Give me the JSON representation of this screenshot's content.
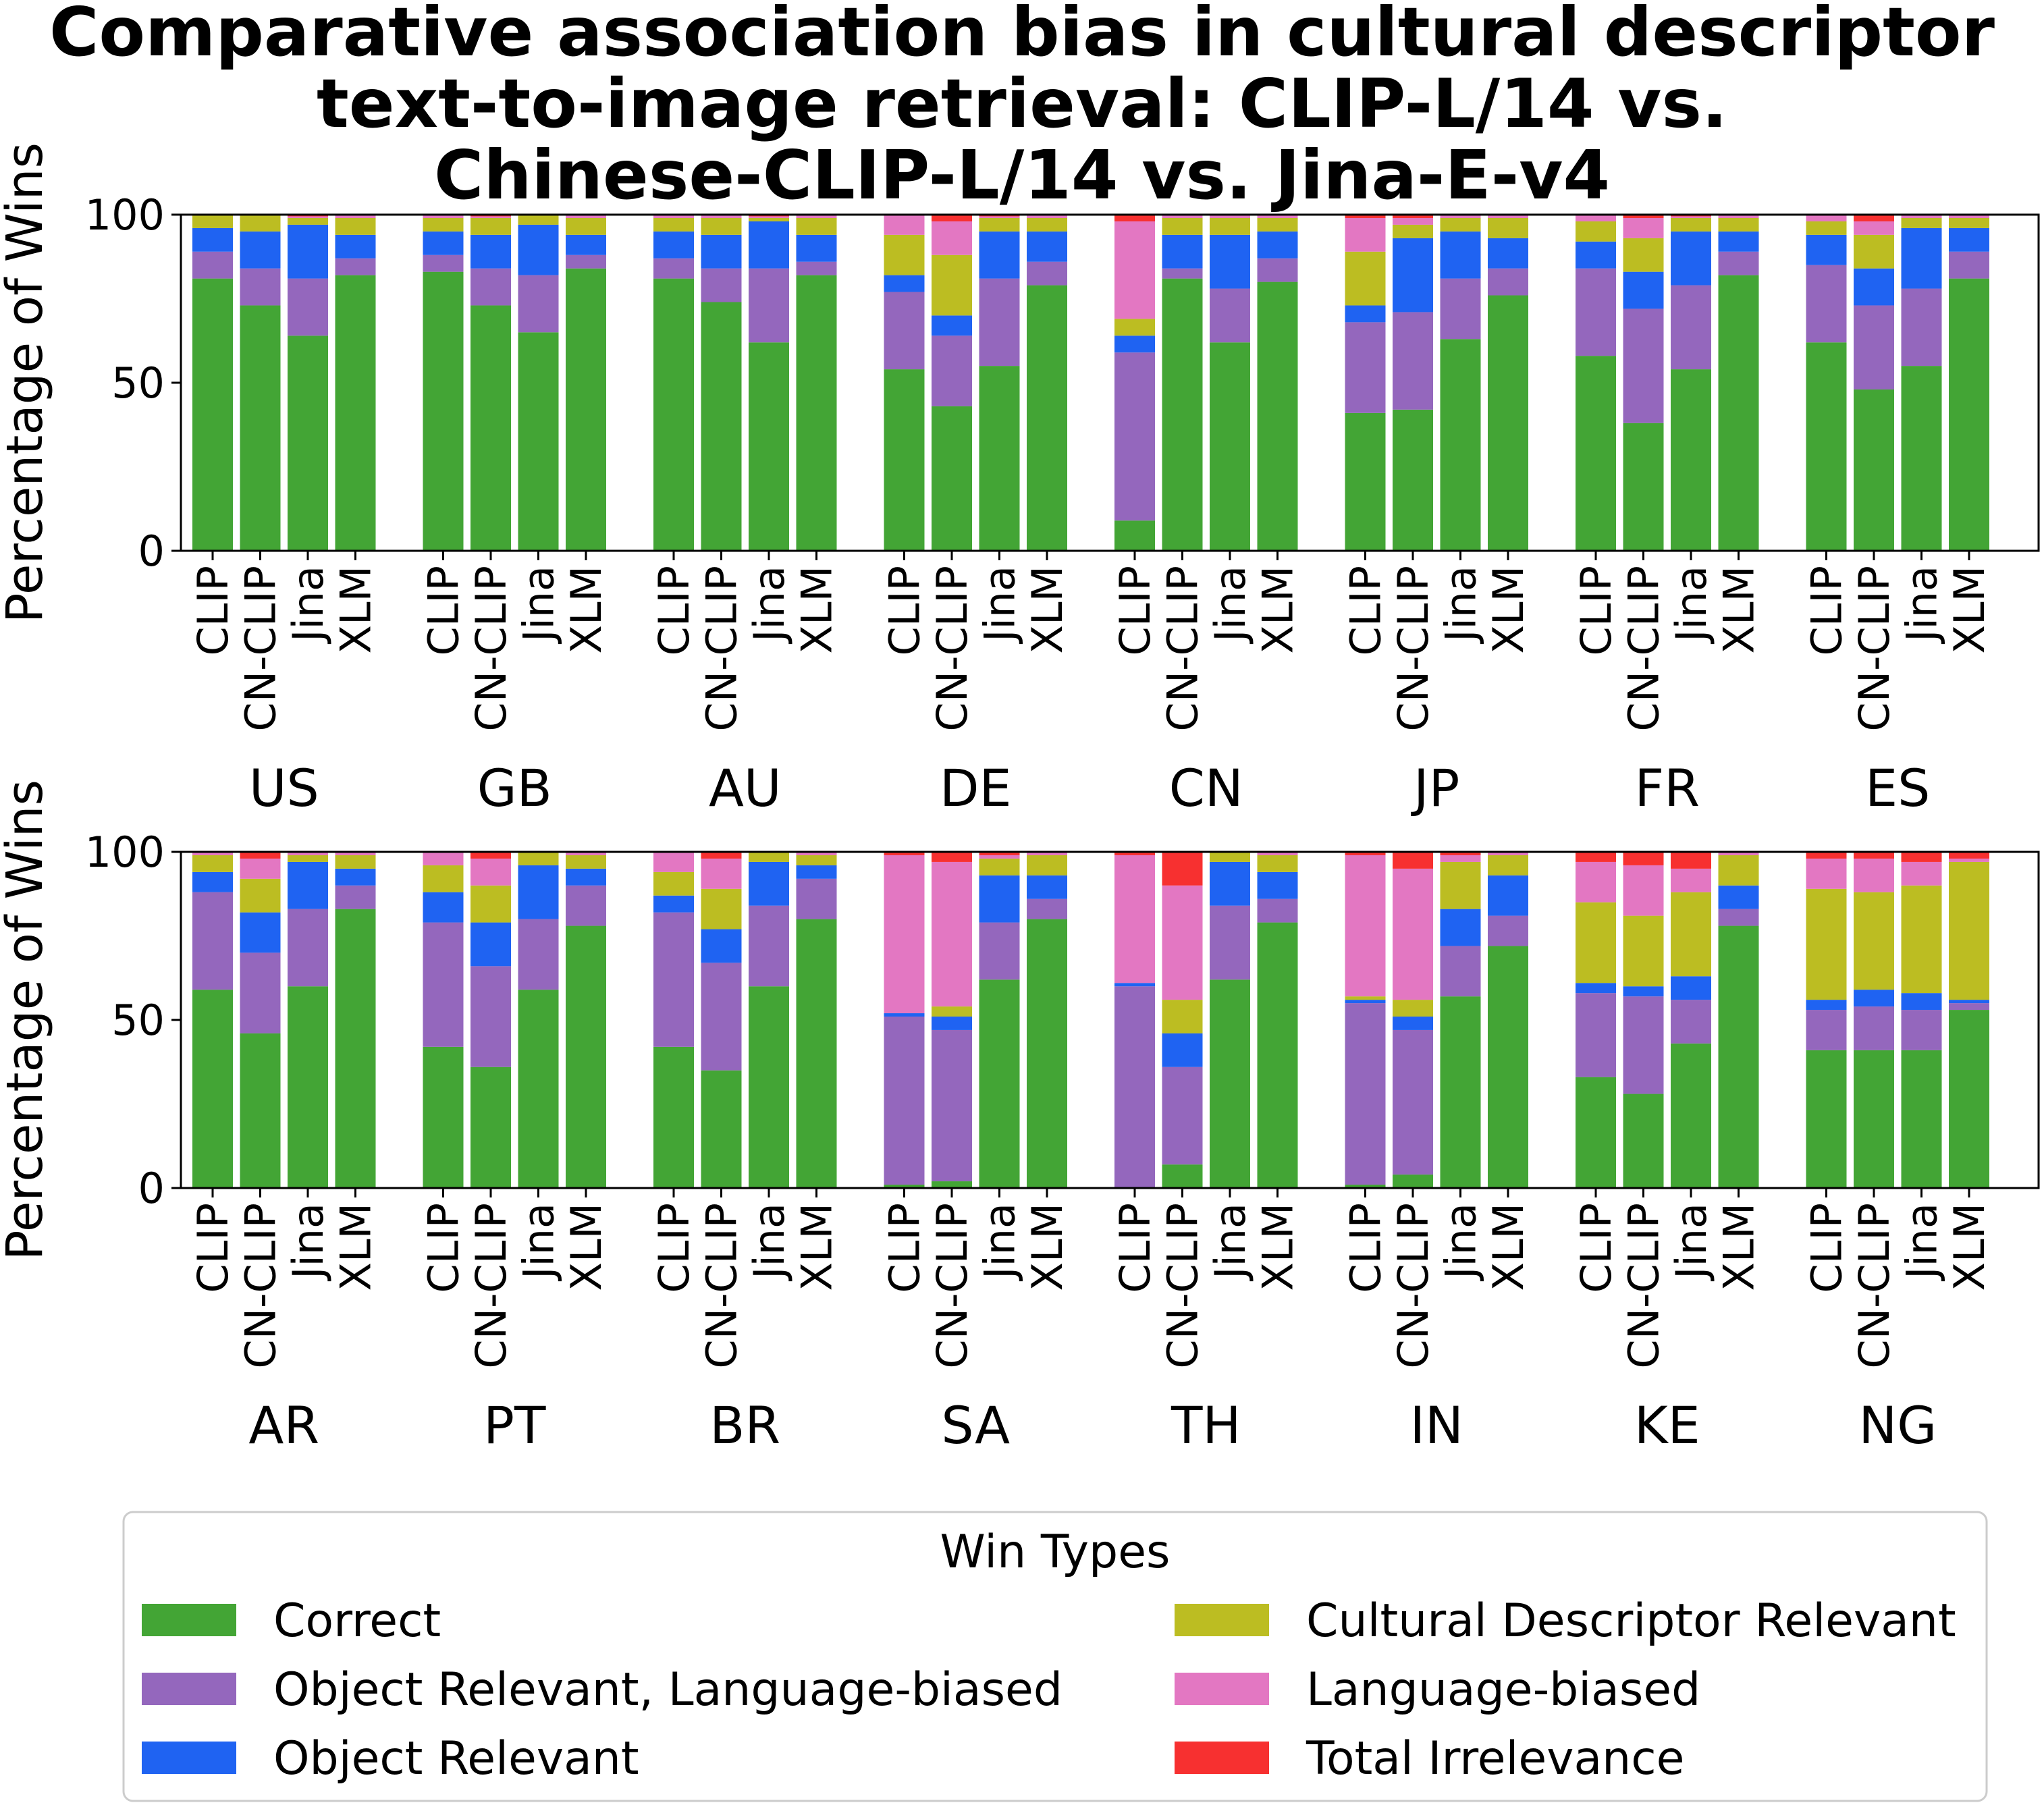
{
  "chart_data": {
    "type": "bar",
    "stacked": true,
    "title_lines": [
      "Comparative association bias in cultural descriptor",
      "text-to-image retrieval: CLIP-L/14 vs.",
      "Chinese-CLIP-L/14 vs. Jina-E-v4"
    ],
    "ylabel": "Percentage of Wins",
    "ylim": [
      0,
      100
    ],
    "yticks": [
      "0",
      "50",
      "100"
    ],
    "models": [
      "CLIP",
      "CN-CLIP",
      "Jina",
      "XLM"
    ],
    "series": [
      {
        "name": "Correct",
        "color": "#43a535"
      },
      {
        "name": "Object Relevant, Language-biased",
        "color": "#9467bd"
      },
      {
        "name": "Object Relevant",
        "color": "#1f63f2"
      },
      {
        "name": "Cultural Descriptor Relevant",
        "color": "#bcbd22"
      },
      {
        "name": "Language-biased",
        "color": "#e377c2"
      },
      {
        "name": "Total Irrelevance",
        "color": "#f73030"
      }
    ],
    "panels": [
      {
        "groups": [
          {
            "country": "US",
            "bars": [
              [
                81,
                8,
                7,
                4,
                0,
                0
              ],
              [
                73,
                11,
                11,
                5,
                0,
                0
              ],
              [
                64,
                17,
                16,
                2,
                0.5,
                0.5
              ],
              [
                82,
                5,
                7,
                5,
                1,
                0
              ]
            ]
          },
          {
            "country": "GB",
            "bars": [
              [
                83,
                5,
                7,
                4,
                1,
                0
              ],
              [
                73,
                11,
                10,
                5,
                0.5,
                0.5
              ],
              [
                65,
                17,
                15,
                3,
                0,
                0
              ],
              [
                84,
                4,
                6,
                5,
                1,
                0
              ]
            ]
          },
          {
            "country": "AU",
            "bars": [
              [
                81,
                6,
                8,
                4,
                1,
                0
              ],
              [
                74,
                10,
                10,
                5,
                1,
                0
              ],
              [
                62,
                22,
                14,
                1,
                0.5,
                0.5
              ],
              [
                82,
                4,
                8,
                5,
                1,
                0
              ]
            ]
          },
          {
            "country": "DE",
            "bars": [
              [
                54,
                23,
                5,
                12,
                6,
                0
              ],
              [
                43,
                21,
                6,
                18,
                10,
                2
              ],
              [
                55,
                26,
                14,
                4,
                0.5,
                0.5
              ],
              [
                79,
                7,
                9,
                4,
                1,
                0
              ]
            ]
          },
          {
            "country": "CN",
            "bars": [
              [
                9,
                50,
                5,
                5,
                29,
                2
              ],
              [
                81,
                3,
                10,
                5,
                1,
                0
              ],
              [
                62,
                16,
                16,
                5,
                1,
                0
              ],
              [
                80,
                7,
                8,
                4,
                1,
                0
              ]
            ]
          },
          {
            "country": "JP",
            "bars": [
              [
                41,
                27,
                5,
                16,
                10,
                1
              ],
              [
                42,
                29,
                22,
                4,
                2,
                1
              ],
              [
                63,
                18,
                14,
                4,
                1,
                0
              ],
              [
                76,
                8,
                9,
                6,
                1,
                0
              ]
            ]
          },
          {
            "country": "FR",
            "bars": [
              [
                58,
                26,
                8,
                6,
                2,
                0
              ],
              [
                38,
                34,
                11,
                10,
                6,
                1
              ],
              [
                54,
                25,
                16,
                4,
                0.5,
                0.5
              ],
              [
                82,
                7,
                6,
                4,
                1,
                0
              ]
            ]
          },
          {
            "country": "ES",
            "bars": [
              [
                62,
                23,
                9,
                4,
                2,
                0
              ],
              [
                48,
                25,
                11,
                10,
                4,
                2
              ],
              [
                55,
                23,
                18,
                3,
                1,
                0
              ],
              [
                81,
                8,
                7,
                3,
                1,
                0
              ]
            ]
          }
        ]
      },
      {
        "groups": [
          {
            "country": "AR",
            "bars": [
              [
                59,
                29,
                6,
                5,
                1,
                0
              ],
              [
                46,
                24,
                12,
                10,
                6,
                2
              ],
              [
                60,
                23,
                14,
                2,
                1,
                0
              ],
              [
                83,
                7,
                5,
                4,
                1,
                0
              ]
            ]
          },
          {
            "country": "PT",
            "bars": [
              [
                42,
                37,
                9,
                8,
                4,
                0
              ],
              [
                36,
                30,
                13,
                11,
                8,
                2
              ],
              [
                59,
                21,
                16,
                4,
                0,
                0
              ],
              [
                78,
                12,
                5,
                4,
                1,
                0
              ]
            ]
          },
          {
            "country": "BR",
            "bars": [
              [
                42,
                40,
                5,
                7,
                6,
                0
              ],
              [
                35,
                32,
                10,
                12,
                9,
                2
              ],
              [
                60,
                24,
                13,
                3,
                0,
                0
              ],
              [
                80,
                12,
                4,
                3,
                1,
                0
              ]
            ]
          },
          {
            "country": "SA",
            "bars": [
              [
                1,
                50,
                1,
                0,
                47,
                1
              ],
              [
                2,
                45,
                4,
                3,
                43,
                3
              ],
              [
                62,
                17,
                14,
                5,
                1,
                1
              ],
              [
                80,
                6,
                7,
                6,
                1,
                0
              ]
            ]
          },
          {
            "country": "TH",
            "bars": [
              [
                0,
                60,
                1,
                0,
                38,
                1
              ],
              [
                7,
                29,
                10,
                10,
                34,
                10
              ],
              [
                62,
                22,
                13,
                3,
                0,
                0
              ],
              [
                79,
                7,
                8,
                5,
                1,
                0
              ]
            ]
          },
          {
            "country": "IN",
            "bars": [
              [
                1,
                54,
                1,
                1,
                42,
                1
              ],
              [
                4,
                43,
                4,
                5,
                39,
                5
              ],
              [
                57,
                15,
                11,
                14,
                2,
                1
              ],
              [
                72,
                9,
                12,
                6,
                1,
                0
              ]
            ]
          },
          {
            "country": "KE",
            "bars": [
              [
                33,
                25,
                3,
                24,
                12,
                3
              ],
              [
                28,
                29,
                3,
                21,
                15,
                4
              ],
              [
                43,
                13,
                7,
                25,
                7,
                5
              ],
              [
                78,
                5,
                7,
                9,
                1,
                0
              ]
            ]
          },
          {
            "country": "NG",
            "bars": [
              [
                41,
                12,
                3,
                33,
                9,
                2
              ],
              [
                41,
                13,
                5,
                29,
                10,
                2
              ],
              [
                41,
                12,
                5,
                32,
                7,
                3
              ],
              [
                53,
                2,
                1,
                41,
                1,
                2
              ]
            ]
          }
        ]
      }
    ],
    "legend": {
      "title": "Win Types",
      "placement": "bottom-center",
      "columns": 2,
      "order": [
        0,
        1,
        2,
        3,
        4,
        5
      ]
    }
  }
}
